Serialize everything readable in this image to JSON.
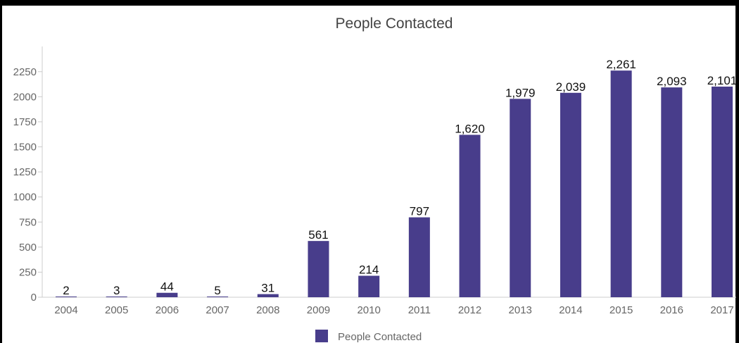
{
  "chart_data": {
    "type": "bar",
    "title": "People Contacted",
    "xlabel": "",
    "ylabel": "",
    "categories": [
      "2004",
      "2005",
      "2006",
      "2007",
      "2008",
      "2009",
      "2010",
      "2011",
      "2012",
      "2013",
      "2014",
      "2015",
      "2016",
      "2017"
    ],
    "series": [
      {
        "name": "People Contacted",
        "values": [
          2,
          3,
          44,
          5,
          31,
          561,
          214,
          797,
          1620,
          1979,
          2039,
          2261,
          2093,
          2101
        ],
        "value_labels": [
          "2",
          "3",
          "44",
          "5",
          "31",
          "561",
          "214",
          "797",
          "1,620",
          "1,979",
          "2,039",
          "2,261",
          "2,093",
          "2,101"
        ],
        "color": "#483D8B"
      }
    ],
    "ylim": [
      0,
      2500
    ],
    "yticks": [
      0,
      250,
      500,
      750,
      1000,
      1250,
      1500,
      1750,
      2000,
      2250
    ],
    "ytick_labels": [
      "0",
      "250",
      "500",
      "750",
      "1000",
      "1250",
      "1500",
      "1750",
      "2000",
      "2250"
    ],
    "grid": false,
    "legend_position": "bottom"
  }
}
